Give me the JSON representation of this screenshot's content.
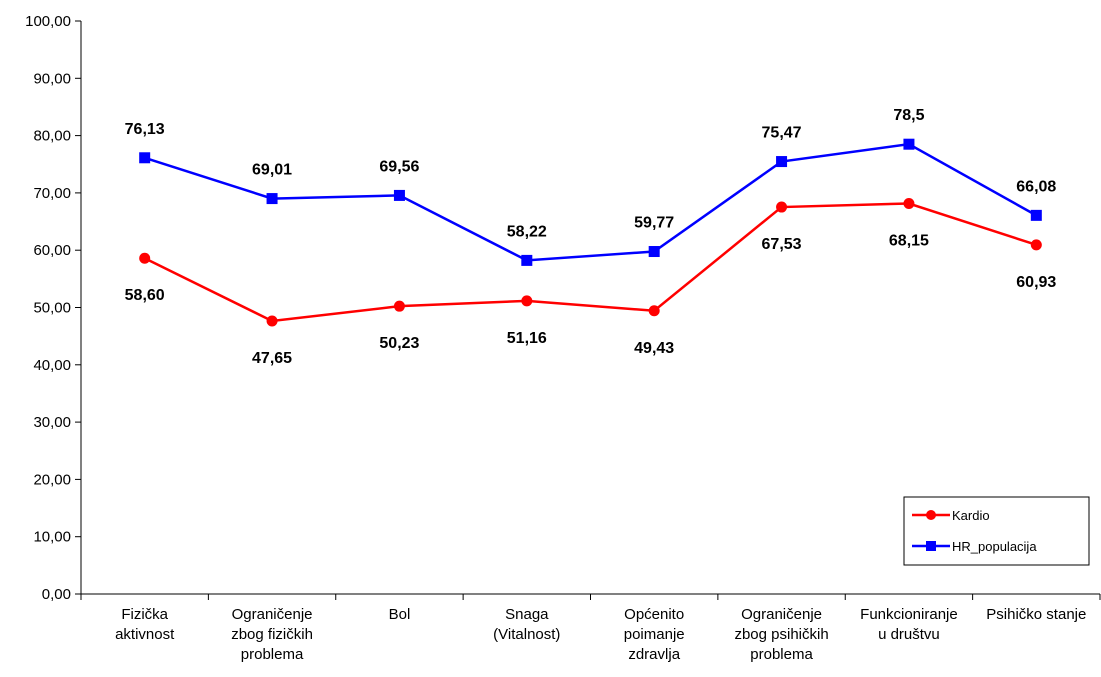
{
  "chart_data": {
    "type": "line",
    "categories": [
      [
        "Fizička",
        "aktivnost"
      ],
      [
        "Ograničenje",
        "zbog fizičkih",
        "problema"
      ],
      [
        "Bol"
      ],
      [
        "Snaga",
        "(Vitalnost)"
      ],
      [
        "Općenito",
        "poimanje",
        "zdravlja"
      ],
      [
        "Ograničenje",
        "zbog psihičkih",
        "problema"
      ],
      [
        "Funkcioniranje",
        "u društvu"
      ],
      [
        "Psihičko stanje"
      ]
    ],
    "series": [
      {
        "name": "Kardio",
        "color": "#ff0000",
        "marker": "circle",
        "values": [
          58.6,
          47.65,
          50.23,
          51.16,
          49.43,
          67.53,
          68.15,
          60.93
        ],
        "labels": [
          "58,60",
          "47,65",
          "50,23",
          "51,16",
          "49,43",
          "67,53",
          "68,15",
          "60,93"
        ],
        "label_position": [
          "below",
          "below",
          "below",
          "below",
          "below",
          "below",
          "below",
          "below"
        ]
      },
      {
        "name": "HR_populacija",
        "color": "#0000ff",
        "marker": "square",
        "values": [
          76.13,
          69.01,
          69.56,
          58.22,
          59.77,
          75.47,
          78.5,
          66.08
        ],
        "labels": [
          "76,13",
          "69,01",
          "69,56",
          "58,22",
          "59,77",
          "75,47",
          "78,5",
          "66,08"
        ],
        "label_position": [
          "above",
          "above",
          "above",
          "above",
          "above",
          "above",
          "above",
          "above"
        ]
      }
    ],
    "ylim": [
      0,
      100
    ],
    "yticks": [
      "0,00",
      "10,00",
      "20,00",
      "30,00",
      "40,00",
      "50,00",
      "60,00",
      "70,00",
      "80,00",
      "90,00",
      "100,00"
    ],
    "grid": false,
    "legend_position": "bottom-right",
    "title": "",
    "xlabel": "",
    "ylabel": ""
  }
}
